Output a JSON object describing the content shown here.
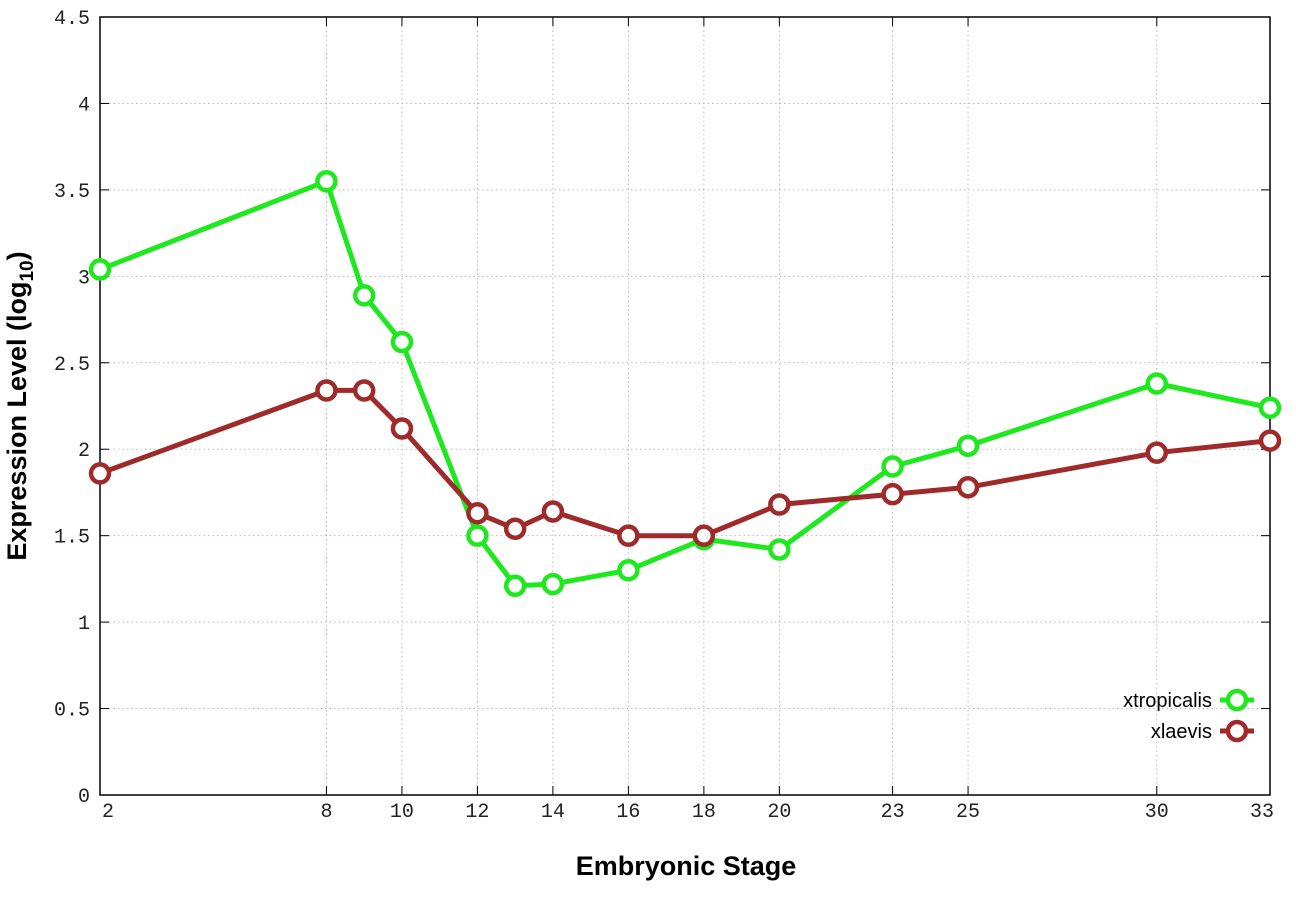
{
  "chart_data": {
    "type": "line",
    "title": "",
    "xlabel": "Embryonic Stage",
    "ylabel": "Expression Level (log",
    "ylabel_sub": "10",
    "ylabel_end": ")",
    "x": [
      2,
      8,
      9,
      10,
      12,
      13,
      14,
      16,
      18,
      20,
      23,
      25,
      30,
      33
    ],
    "x_tick_labels": [
      "2",
      "8",
      "10",
      "12",
      "14",
      "16",
      "18",
      "20",
      "23",
      "25",
      "30",
      "33"
    ],
    "y_tick_labels": [
      "0",
      "0.5",
      "1",
      "1.5",
      "2",
      "2.5",
      "3",
      "3.5",
      "4",
      "4.5"
    ],
    "ylim": [
      0,
      4.5
    ],
    "grid": true,
    "legend_position": "bottom-right",
    "series": [
      {
        "name": "xtropicalis",
        "color": "#1ee81e",
        "marker": "circle",
        "values": [
          3.04,
          3.55,
          2.89,
          2.62,
          1.5,
          1.21,
          1.22,
          1.3,
          1.48,
          1.42,
          1.9,
          2.02,
          2.38,
          2.24
        ]
      },
      {
        "name": "xlaevis",
        "color": "#9e2a2a",
        "marker": "circle",
        "values": [
          1.86,
          2.34,
          2.34,
          2.12,
          1.63,
          1.54,
          1.64,
          1.5,
          1.5,
          1.68,
          1.74,
          1.78,
          1.98,
          2.05
        ]
      }
    ]
  }
}
